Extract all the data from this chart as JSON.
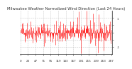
{
  "title": "Milwaukee Weather Normalized Wind Direction (Last 24 Hours)",
  "background_color": "#ffffff",
  "line_color": "#ff0000",
  "grid_color": "#bbbbbb",
  "ylim": [
    -1.5,
    1.5
  ],
  "yticks": [
    -1.0,
    -0.5,
    0.0,
    0.5,
    1.0
  ],
  "num_points": 288,
  "seed": 42,
  "title_fontsize": 3.8,
  "tick_fontsize": 3.0,
  "linewidth": 0.4
}
